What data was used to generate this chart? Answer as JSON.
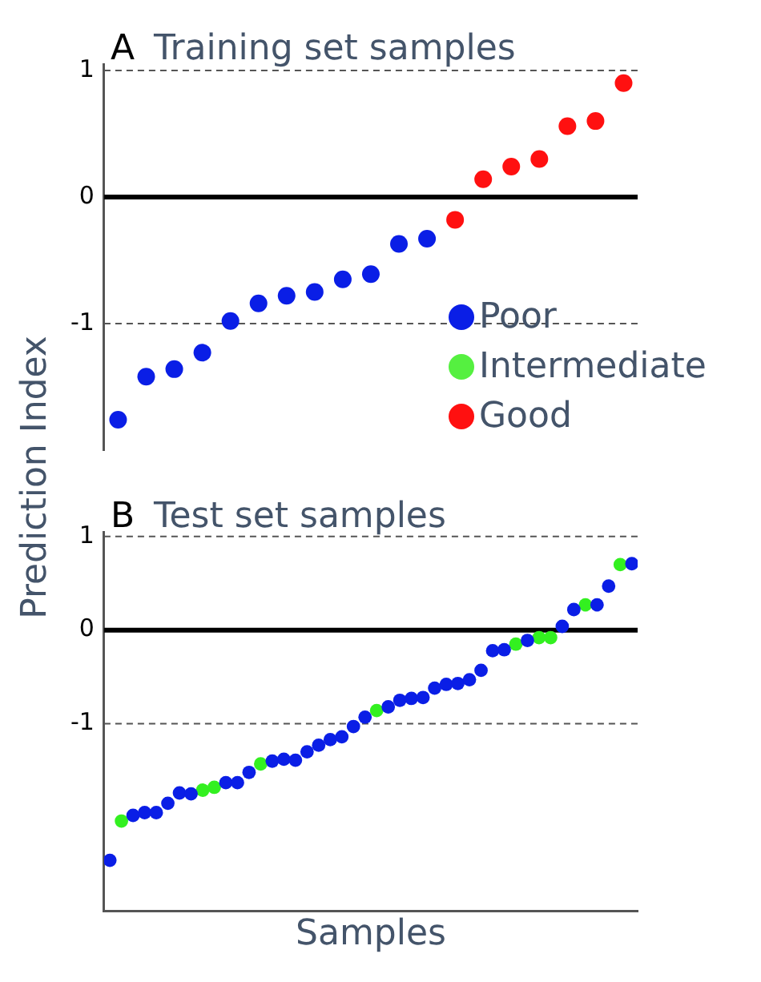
{
  "chart_data": [
    {
      "type": "scatter",
      "title": "Training set samples",
      "annotations": [
        "A"
      ],
      "ylabel": "Prediction Index",
      "categories": [
        null,
        null,
        null,
        null,
        null,
        null,
        null,
        null,
        null,
        null,
        null,
        null,
        null,
        null,
        null,
        null,
        null,
        null,
        null
      ],
      "series": [
        {
          "name": "Poor",
          "color": "#0a1ee6",
          "values": [
            -1.76,
            -1.42,
            -1.36,
            -1.23,
            -0.98,
            -0.84,
            -0.78,
            -0.75,
            -0.65,
            -0.61,
            -0.37,
            -0.33,
            null,
            null,
            null,
            null,
            null,
            null,
            null
          ]
        },
        {
          "name": "Intermediate",
          "color": "#55f040",
          "values": [
            null,
            null,
            null,
            null,
            null,
            null,
            null,
            null,
            null,
            null,
            null,
            null,
            null,
            null,
            null,
            null,
            null,
            null,
            null
          ]
        },
        {
          "name": "Good",
          "color": "#ff1010",
          "values": [
            null,
            null,
            null,
            null,
            null,
            null,
            null,
            null,
            null,
            null,
            null,
            null,
            -0.18,
            0.14,
            0.24,
            0.3,
            0.56,
            0.6,
            0.9
          ]
        }
      ],
      "ylim": [
        -2,
        1.05
      ],
      "yticks": [
        -1,
        0,
        1
      ],
      "ref_lines": [
        {
          "axis": "y",
          "value": 1,
          "line_style": "dashed",
          "color": "#555555"
        },
        {
          "axis": "y",
          "value": 0,
          "line_style": "solid",
          "color": "#000000"
        },
        {
          "axis": "y",
          "value": -1,
          "line_style": "dashed",
          "color": "#555555"
        }
      ],
      "marker": "circle",
      "grid": false,
      "legend": "bottom right",
      "tick_labels": "y"
    },
    {
      "type": "scatter",
      "title": "Test set samples",
      "annotations": [
        "B"
      ],
      "xlabel": "Samples",
      "categories": [
        null,
        null,
        null,
        null,
        null,
        null,
        null,
        null,
        null,
        null,
        null,
        null,
        null,
        null,
        null,
        null,
        null,
        null,
        null,
        null,
        null,
        null,
        null,
        null,
        null,
        null,
        null,
        null,
        null,
        null,
        null,
        null,
        null,
        null,
        null,
        null,
        null,
        null,
        null,
        null,
        null,
        null,
        null,
        null,
        null,
        null
      ],
      "series": [
        {
          "color": "#0a1ee6",
          "values": [
            -2.46,
            null,
            -1.98,
            -1.95,
            -1.95,
            -1.85,
            -1.74,
            -1.75,
            null,
            null,
            -1.63,
            -1.63,
            -1.52,
            null,
            -1.4,
            -1.38,
            -1.39,
            -1.3,
            -1.23,
            -1.17,
            -1.14,
            -1.03,
            -0.93,
            null,
            -0.82,
            -0.75,
            -0.73,
            -0.72,
            -0.62,
            -0.58,
            -0.57,
            -0.53,
            -0.43,
            -0.22,
            -0.21,
            null,
            -0.11,
            null,
            null,
            0.04,
            0.22,
            null,
            0.27,
            0.47,
            null,
            0.71
          ]
        },
        {
          "color": "#33f020",
          "values": [
            null,
            -2.04,
            null,
            null,
            null,
            null,
            null,
            null,
            -1.71,
            -1.68,
            null,
            null,
            null,
            -1.43,
            null,
            null,
            null,
            null,
            null,
            null,
            null,
            null,
            null,
            -0.86,
            null,
            null,
            null,
            null,
            null,
            null,
            null,
            null,
            null,
            null,
            null,
            -0.15,
            null,
            -0.08,
            -0.08,
            null,
            null,
            0.27,
            null,
            null,
            0.7,
            null
          ]
        }
      ],
      "ylim": [
        -3,
        1.05
      ],
      "yticks": [
        -1,
        0,
        1
      ],
      "ref_lines": [
        {
          "axis": "y",
          "value": 1,
          "line_style": "dashed",
          "color": "#555555"
        },
        {
          "axis": "y",
          "value": 0,
          "line_style": "solid",
          "color": "#000000"
        },
        {
          "axis": "y",
          "value": -1,
          "line_style": "dashed",
          "color": "#555555"
        }
      ],
      "marker": "circle",
      "grid": false,
      "tick_labels": "y"
    }
  ]
}
